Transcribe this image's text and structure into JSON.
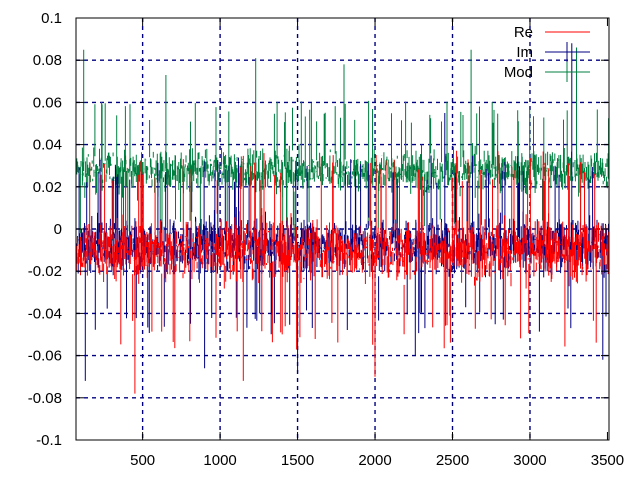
{
  "chart_data": {
    "type": "line",
    "x_range": [
      70,
      3510
    ],
    "ylim": [
      -0.1,
      0.1
    ],
    "x_ticks": [
      500,
      1000,
      1500,
      2000,
      2500,
      3000,
      3500
    ],
    "x_tick_labels": [
      "500",
      "1000",
      "1500",
      "2000",
      "2500",
      "3000",
      "3500"
    ],
    "y_ticks": [
      -0.1,
      -0.08,
      -0.06,
      -0.04,
      -0.02,
      0,
      0.02,
      0.04,
      0.06,
      0.08,
      0.1
    ],
    "y_tick_labels": [
      "-0.1",
      "-0.08",
      "-0.06",
      "-0.04",
      "-0.02",
      "0",
      "0.02",
      "0.04",
      "0.06",
      "0.08",
      "0.1"
    ],
    "grid": true,
    "grid_color": "#000080",
    "legend_position": "top-right",
    "series": [
      {
        "name": "Re",
        "color": "#ff0000",
        "style": "impulses",
        "typical_range": [
          -0.035,
          0.015
        ],
        "extremes": [
          {
            "x": 450,
            "y": -0.078
          },
          {
            "x": 1150,
            "y": -0.072
          },
          {
            "x": 2000,
            "y": -0.07
          },
          {
            "x": 1730,
            "y": 0.035
          },
          {
            "x": 2300,
            "y": 0.04
          },
          {
            "x": 2600,
            "y": 0.033
          }
        ]
      },
      {
        "name": "Im",
        "color": "#000080",
        "style": "impulses",
        "typical_range": [
          -0.03,
          0.015
        ],
        "extremes": [
          {
            "x": 130,
            "y": -0.072
          },
          {
            "x": 900,
            "y": -0.066
          },
          {
            "x": 1500,
            "y": -0.068
          },
          {
            "x": 2260,
            "y": -0.06
          },
          {
            "x": 3470,
            "y": -0.062
          },
          {
            "x": 3270,
            "y": 0.088
          },
          {
            "x": 2450,
            "y": 0.055
          }
        ]
      },
      {
        "name": "Mod",
        "color": "#008040",
        "style": "impulses",
        "typical_range": [
          0.01,
          0.045
        ],
        "extremes": [
          {
            "x": 120,
            "y": 0.085
          },
          {
            "x": 1230,
            "y": 0.081
          },
          {
            "x": 2620,
            "y": 0.085
          },
          {
            "x": 3300,
            "y": 0.086
          },
          {
            "x": 650,
            "y": 0.073
          },
          {
            "x": 1800,
            "y": 0.078
          }
        ]
      }
    ]
  }
}
